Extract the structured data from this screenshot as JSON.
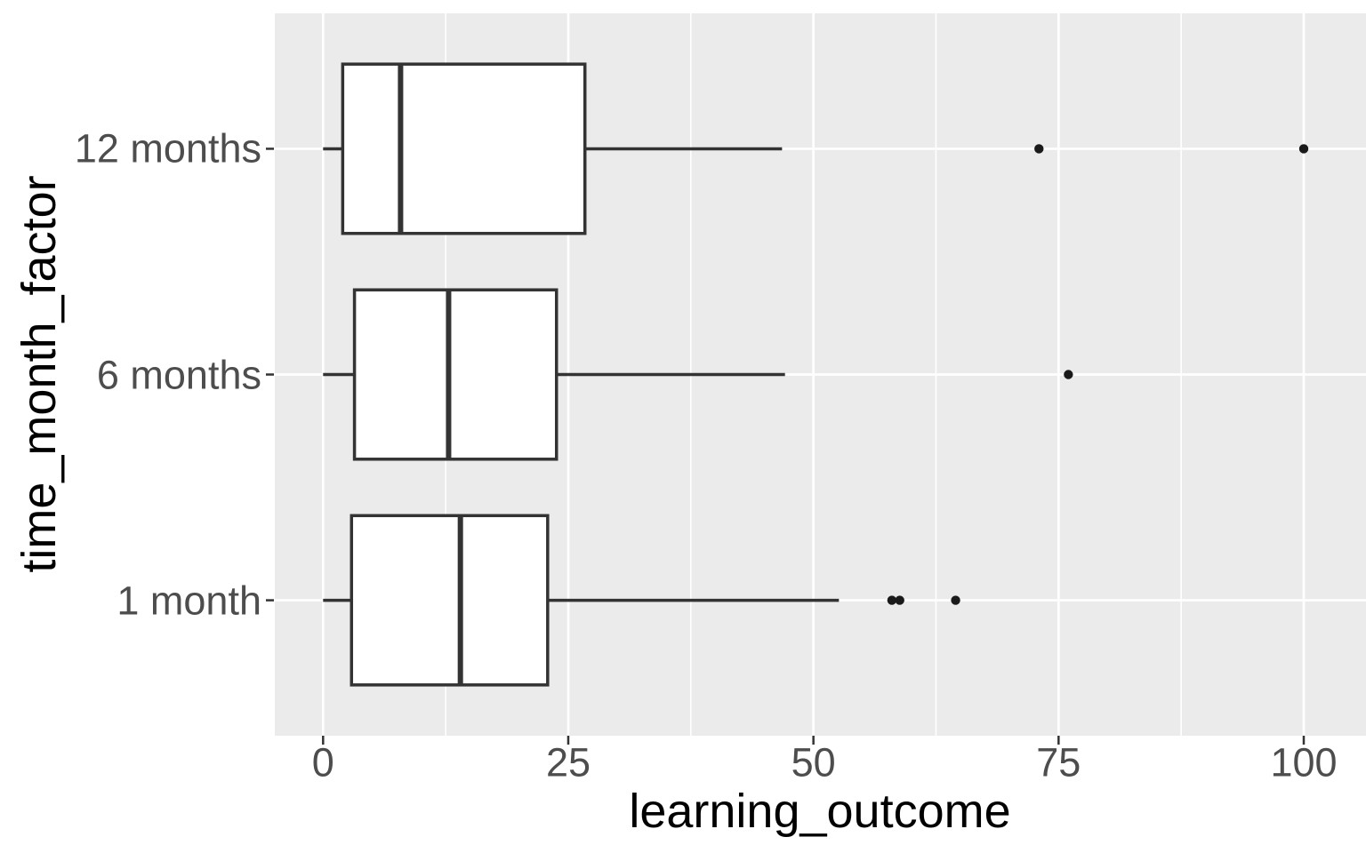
{
  "chart_data": {
    "type": "boxplot",
    "orientation": "horizontal",
    "title": "",
    "xlabel": "learning_outcome",
    "ylabel": "time_month_factor",
    "x_ticks": [
      0,
      25,
      50,
      75,
      100
    ],
    "x_minor_gridlines": [
      12.5,
      37.5,
      62.5,
      87.5
    ],
    "x_axis_range": [
      -4.9,
      106.4
    ],
    "grid": "on",
    "legend_position": "none",
    "categories": [
      "12 months",
      "6 months",
      "1 month"
    ],
    "series": [
      {
        "category": "12 months",
        "whisker_low": 0,
        "q1": 2.0,
        "median": 7.9,
        "q3": 26.7,
        "whisker_high": 46.8,
        "outliers": [
          73,
          100
        ]
      },
      {
        "category": "6 months",
        "whisker_low": 0,
        "q1": 3.2,
        "median": 12.8,
        "q3": 23.8,
        "whisker_high": 47.1,
        "outliers": [
          76
        ]
      },
      {
        "category": "1 month",
        "whisker_low": 0,
        "q1": 2.9,
        "median": 14.0,
        "q3": 22.9,
        "whisker_high": 52.6,
        "outliers": [
          58,
          58.8,
          64.5
        ]
      }
    ],
    "colors": {
      "panel_background": "#EBEBEB",
      "gridline": "#FFFFFF",
      "box_stroke": "#333333",
      "box_fill": "#FFFFFF",
      "median_stroke": "#333333",
      "outlier_point": "#1A1A1A",
      "tick_mark": "#333333",
      "tick_label": "#4D4D4D",
      "axis_title": "#000000"
    }
  }
}
